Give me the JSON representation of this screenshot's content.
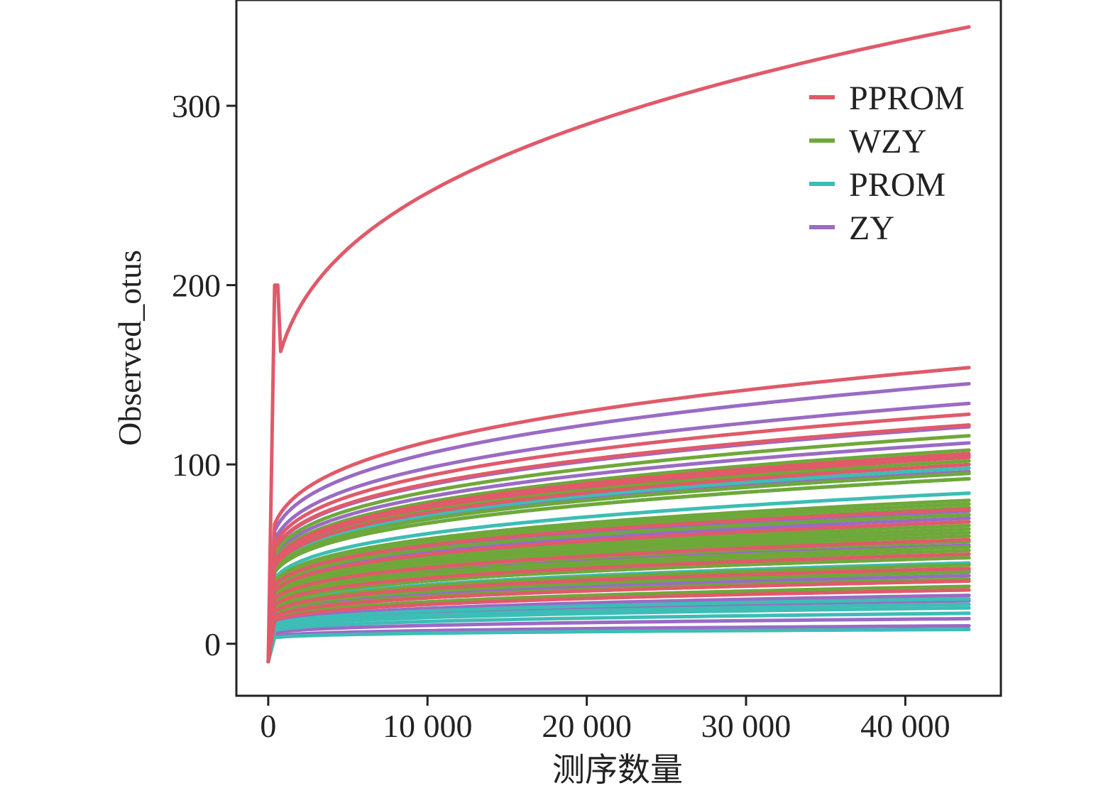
{
  "chart_data": {
    "type": "line",
    "title": "",
    "xlabel": "测序数量",
    "ylabel": "Observed_otus",
    "xlim": [
      -2000,
      46000
    ],
    "ylim": [
      -29,
      359
    ],
    "x_ticks": [
      0,
      10000,
      20000,
      30000,
      40000
    ],
    "x_tick_labels": [
      "0",
      "10 000",
      "20 000",
      "30 000",
      "40 000"
    ],
    "y_ticks": [
      0,
      100,
      200,
      300
    ],
    "y_tick_labels": [
      "0",
      "100",
      "200",
      "300"
    ],
    "grid": false,
    "legend_position": "top-right",
    "x_max": 44000,
    "legend": [
      {
        "name": "PPROM",
        "color": "#e05a6a"
      },
      {
        "name": "WZY",
        "color": "#6fa83a"
      },
      {
        "name": "PROM",
        "color": "#3dbdb5"
      },
      {
        "name": "ZY",
        "color": "#9a6bc4"
      }
    ],
    "series_final_values": {
      "PPROM": [
        344,
        154,
        128,
        122,
        106,
        104,
        100,
        75,
        68,
        58,
        50,
        42,
        35,
        30
      ],
      "WZY": [
        116,
        108,
        102,
        95,
        92,
        80,
        78,
        76,
        72,
        66,
        64,
        62,
        60,
        57,
        54,
        52,
        48,
        44,
        40,
        36,
        32
      ],
      "PROM": [
        98,
        95,
        92,
        84,
        72,
        45,
        40,
        30,
        25,
        22,
        20,
        17,
        8
      ],
      "ZY": [
        145,
        134,
        121,
        112,
        105,
        96,
        74,
        70,
        62,
        55,
        48,
        45,
        41,
        38,
        35,
        27,
        24,
        14,
        10
      ]
    }
  }
}
